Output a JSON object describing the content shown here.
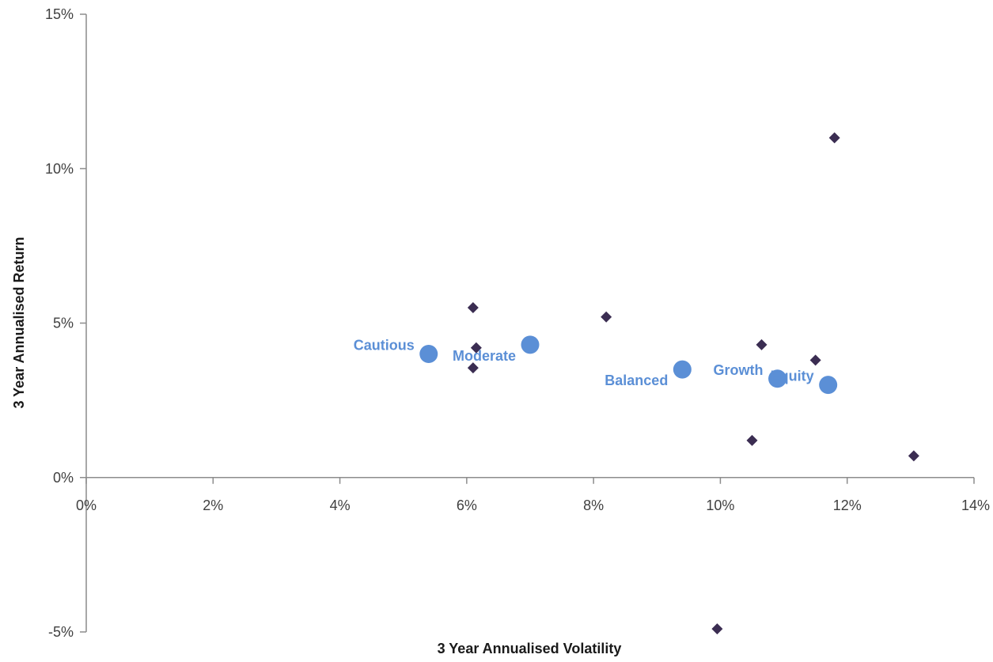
{
  "chart_data": {
    "type": "scatter",
    "title": "",
    "xlabel": "3 Year Annualised Volatility",
    "ylabel": "3 Year Annualised Return",
    "xlim": [
      0,
      14
    ],
    "ylim": [
      -5,
      15
    ],
    "x_ticks": [
      {
        "value": 0,
        "label": "0%"
      },
      {
        "value": 2,
        "label": "2%"
      },
      {
        "value": 4,
        "label": "4%"
      },
      {
        "value": 6,
        "label": "6%"
      },
      {
        "value": 8,
        "label": "8%"
      },
      {
        "value": 10,
        "label": "10%"
      },
      {
        "value": 12,
        "label": "12%"
      },
      {
        "value": 14,
        "label": "14%"
      }
    ],
    "y_ticks": [
      {
        "value": -5,
        "label": "-5%"
      },
      {
        "value": 0,
        "label": "0%"
      },
      {
        "value": 5,
        "label": "5%"
      },
      {
        "value": 10,
        "label": "10%"
      },
      {
        "value": 15,
        "label": "15%"
      }
    ],
    "grid": false,
    "legend": "none",
    "series": [
      {
        "marker": "diamond",
        "color": "#3b2d52",
        "points": [
          {
            "x": 6.1,
            "y": 5.5
          },
          {
            "x": 6.15,
            "y": 4.2
          },
          {
            "x": 6.1,
            "y": 3.55
          },
          {
            "x": 8.2,
            "y": 5.2
          },
          {
            "x": 10.65,
            "y": 4.3
          },
          {
            "x": 11.5,
            "y": 3.8
          },
          {
            "x": 11.8,
            "y": 11.0
          },
          {
            "x": 10.5,
            "y": 1.2
          },
          {
            "x": 13.05,
            "y": 0.7
          },
          {
            "x": 9.95,
            "y": -4.9
          }
        ]
      },
      {
        "marker": "circle",
        "color": "#5b8fd6",
        "points": [
          {
            "x": 5.4,
            "y": 4.0,
            "label": "Cautious",
            "label_position": "left-top"
          },
          {
            "x": 7.0,
            "y": 4.3,
            "label": "Moderate",
            "label_position": "left-bottom"
          },
          {
            "x": 9.4,
            "y": 3.5,
            "label": "Balanced",
            "label_position": "left-bottom"
          },
          {
            "x": 10.9,
            "y": 3.2,
            "label": "Growth",
            "label_position": "left-top"
          },
          {
            "x": 11.7,
            "y": 3.0,
            "label": "Equity",
            "label_position": "left-top"
          }
        ]
      }
    ]
  },
  "colors": {
    "axis": "#8c8c8c",
    "diamond": "#3b2d52",
    "circle": "#5b8fd6",
    "point_label": "#5b8fd6"
  }
}
